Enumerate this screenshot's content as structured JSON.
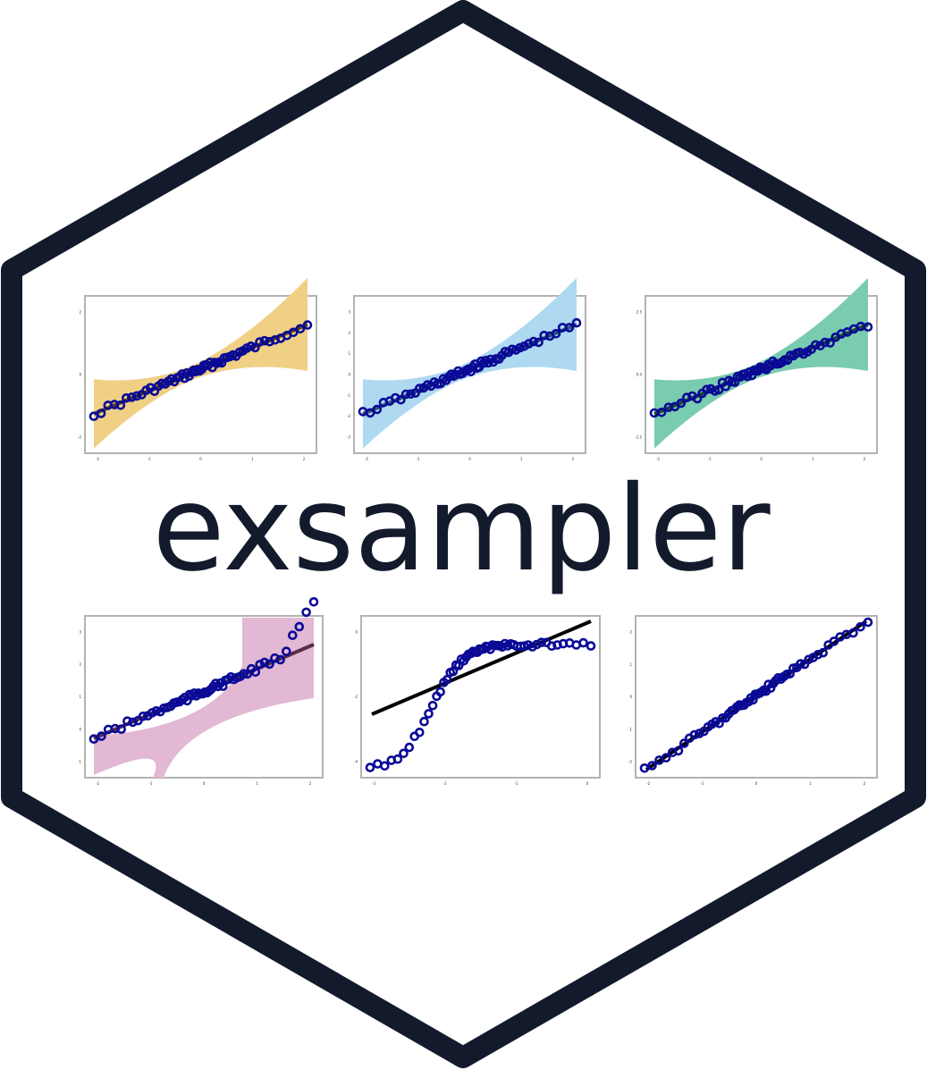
{
  "logo": {
    "wordmark": "exsampler",
    "colors": {
      "border": "#121a2c",
      "background": "#ffffff",
      "text": "#121a2c",
      "points": "#0a0a96",
      "frame": "#b3b3b3"
    }
  },
  "plots": [
    {
      "id": "qq-orange",
      "band": "#f0d085",
      "line": "#5a3e1c",
      "lineWidth": 4,
      "bandShape": "flare",
      "xticks": [
        "-2",
        "-1",
        "0",
        "1",
        "2"
      ],
      "yticks": [
        "2",
        "0",
        "-2"
      ]
    },
    {
      "id": "qq-blue",
      "band": "#aed9f1",
      "line": "#2b5a6a",
      "lineWidth": 4,
      "bandShape": "flare",
      "xticks": [
        "-2",
        "-1",
        "0",
        "1",
        "2"
      ],
      "yticks": [
        "3",
        "2",
        "1",
        "0",
        "-1",
        "-2",
        "-3"
      ]
    },
    {
      "id": "qq-teal",
      "band": "#79ccb0",
      "line": "#1a4a35",
      "lineWidth": 4,
      "bandShape": "flare",
      "xticks": [
        "-2",
        "-1",
        "0",
        "1",
        "2"
      ],
      "yticks": [
        "2.5",
        "0.0",
        "-2.5"
      ]
    },
    {
      "id": "qq-pink",
      "band": "#e2b8d4",
      "line": "#5a2e4a",
      "lineWidth": 4,
      "bandShape": "notch",
      "xticks": [
        "-2",
        "-1",
        "0",
        "1",
        "2"
      ],
      "yticks": [
        "3",
        "2",
        "1",
        "0",
        "-1"
      ]
    },
    {
      "id": "qq-curve",
      "band": null,
      "line": "#000000",
      "lineWidth": 4,
      "bandShape": "none",
      "xticks": [
        "-3",
        "-2",
        "-1",
        "0"
      ],
      "yticks": [
        "0",
        "-2",
        "-4"
      ]
    },
    {
      "id": "qq-plain",
      "band": null,
      "line": "#000000",
      "lineWidth": 4,
      "bandShape": "none",
      "xticks": [
        "-2",
        "-1",
        "0",
        "1",
        "2"
      ],
      "yticks": [
        "2",
        "1",
        "0",
        "-1",
        "-2"
      ]
    }
  ]
}
